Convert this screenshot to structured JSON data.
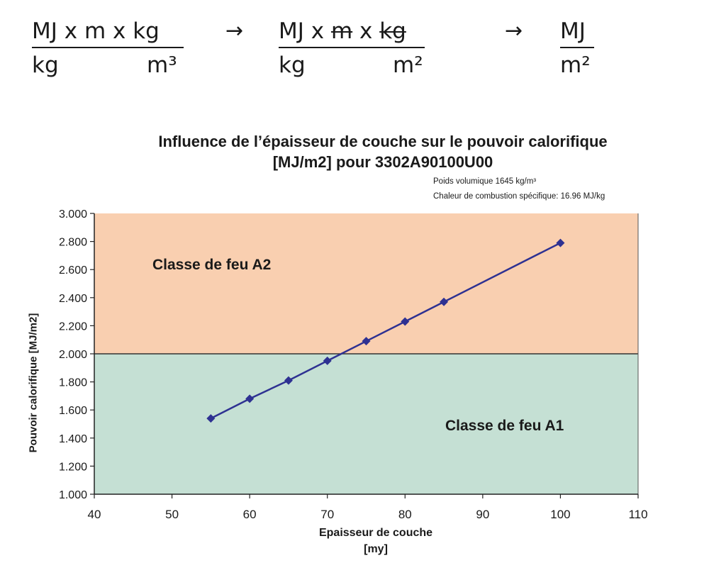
{
  "formula": {
    "step1": {
      "numerator": "MJ x m x kg",
      "den_left": "kg",
      "den_right": "m³"
    },
    "arrow1": "→",
    "step2": {
      "num_a": "MJ x ",
      "num_b": "m",
      "num_c": " x ",
      "num_d": "kg",
      "den_left": "kg",
      "den_right": "m²"
    },
    "arrow2": "→",
    "step3": {
      "numerator": "MJ",
      "denominator": "m²"
    }
  },
  "chart_data": {
    "type": "line",
    "title_line1": "Influence de l’épaisseur de couche sur le pouvoir calorifique",
    "title_line2": "[MJ/m2] pour 3302A90100U00",
    "note_line1": "Poids volumique 1645 kg/m³",
    "note_line2": "Chaleur de combustion spécifique: 16.96 MJ/kg",
    "xlabel_line1": "Epaisseur de couche",
    "xlabel_line2": "[my]",
    "ylabel": "Pouvoir calorifique  [MJ/m2]",
    "xlim": [
      40,
      110
    ],
    "ylim": [
      1000,
      3000
    ],
    "x_ticks": [
      40,
      50,
      60,
      70,
      80,
      90,
      100,
      110
    ],
    "x_tick_labels": [
      "40",
      "50",
      "60",
      "70",
      "80",
      "90",
      "100",
      "110"
    ],
    "y_ticks": [
      1000,
      1200,
      1400,
      1600,
      1800,
      2000,
      2200,
      2400,
      2600,
      2800,
      3000
    ],
    "y_tick_labels": [
      "1.000",
      "1.200",
      "1.400",
      "1.600",
      "1.800",
      "2.000",
      "2.200",
      "2.400",
      "2.600",
      "2.800",
      "3.000"
    ],
    "threshold": 2000,
    "regions": [
      {
        "label": "Classe de feu  A2",
        "from": 2000,
        "to": 3000,
        "color": "#f9cfb0"
      },
      {
        "label": "Classe de feu A1",
        "from": 1000,
        "to": 2000,
        "color": "#c5e0d4"
      }
    ],
    "grid": false,
    "series": [
      {
        "x": [
          55,
          60,
          65,
          70,
          75,
          80,
          85,
          100
        ],
        "y": [
          1540,
          1680,
          1810,
          1950,
          2090,
          2230,
          2370,
          2790
        ],
        "color": "#2e3192",
        "marker": "diamond"
      }
    ]
  }
}
